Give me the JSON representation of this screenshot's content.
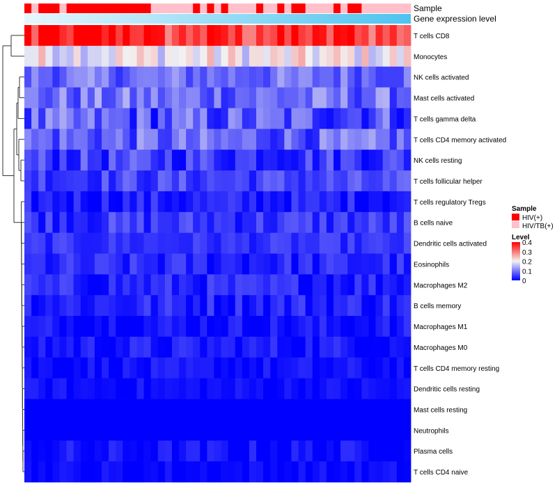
{
  "chart_data": {
    "type": "heatmap",
    "annotation_labels": {
      "sample": "Sample",
      "gene": "Gene expression level"
    },
    "row_labels": [
      "T cells CD8",
      "Monocytes",
      "NK cells activated",
      "Mast cells activated",
      "T cells gamma delta",
      "T cells CD4 memory activated",
      "NK cells resting",
      "T cells follicular helper",
      "T cells regulatory  Tregs",
      "B cells naive",
      "Dendritic cells activated",
      "Eosinophils",
      "Macrophages M2",
      "B cells memory",
      "Macrophages M1",
      "Macrophages M0",
      "T cells CD4 memory resting",
      "Dendritic cells resting",
      "Mast cells resting",
      "Neutrophils",
      "Plasma cells",
      "T cells CD4 naive"
    ],
    "sample_groups": [
      "HIV(+)",
      "HIV/TB(+)",
      "HIV(+)",
      "HIV(+)",
      "HIV(+)",
      "HIV/TB(+)",
      "HIV(+)",
      "HIV(+)",
      "HIV(+)",
      "HIV(+)",
      "HIV(+)",
      "HIV(+)",
      "HIV(+)",
      "HIV(+)",
      "HIV(+)",
      "HIV(+)",
      "HIV(+)",
      "HIV(+)",
      "HIV/TB(+)",
      "HIV/TB(+)",
      "HIV/TB(+)",
      "HIV/TB(+)",
      "HIV/TB(+)",
      "HIV/TB(+)",
      "HIV(+)",
      "HIV/TB(+)",
      "HIV(+)",
      "HIV/TB(+)",
      "HIV(+)",
      "HIV/TB(+)",
      "HIV/TB(+)",
      "HIV/TB(+)",
      "HIV/TB(+)",
      "HIV(+)",
      "HIV/TB(+)",
      "HIV/TB(+)",
      "HIV(+)",
      "HIV/TB(+)",
      "HIV(+)",
      "HIV(+)",
      "HIV/TB(+)",
      "HIV/TB(+)",
      "HIV/TB(+)",
      "HIV/TB(+)",
      "HIV(+)",
      "HIV/TB(+)",
      "HIV(+)",
      "HIV(+)",
      "HIV/TB(+)",
      "HIV/TB(+)",
      "HIV/TB(+)",
      "HIV/TB(+)",
      "HIV/TB(+)",
      "HIV/TB(+)",
      "HIV/TB(+)"
    ],
    "legend": {
      "sample_title": "Sample",
      "sample_items": [
        {
          "label": "HIV(+)",
          "color": "#ff0000"
        },
        {
          "label": "HIV/TB(+)",
          "color": "#ffc0cb"
        }
      ],
      "level_title": "Level",
      "level_ticks": [
        "0.4",
        "0.3",
        "0.2",
        "0.1",
        "0"
      ],
      "level_tick_values": [
        0.4,
        0.3,
        0.2,
        0.1,
        0.0
      ]
    },
    "color_scale": {
      "min": 0,
      "mid": 0.2,
      "max": 0.4,
      "low": "#0000ff",
      "middle": "#f2f2f2",
      "high": "#ff0000"
    },
    "row_means": [
      0.34,
      0.2,
      0.09,
      0.09,
      0.07,
      0.08,
      0.05,
      0.055,
      0.025,
      0.045,
      0.04,
      0.03,
      0.03,
      0.03,
      0.015,
      0.02,
      0.01,
      0.01,
      0.0,
      0.0,
      0.01,
      0.005
    ],
    "row_spread": [
      0.07,
      0.06,
      0.05,
      0.06,
      0.07,
      0.06,
      0.05,
      0.04,
      0.035,
      0.04,
      0.025,
      0.035,
      0.035,
      0.035,
      0.03,
      0.03,
      0.025,
      0.02,
      0.0,
      0.0,
      0.03,
      0.02
    ],
    "gene_expression_gradient": {
      "from": "#e6f7fd",
      "to": "#4ec3ef"
    }
  }
}
